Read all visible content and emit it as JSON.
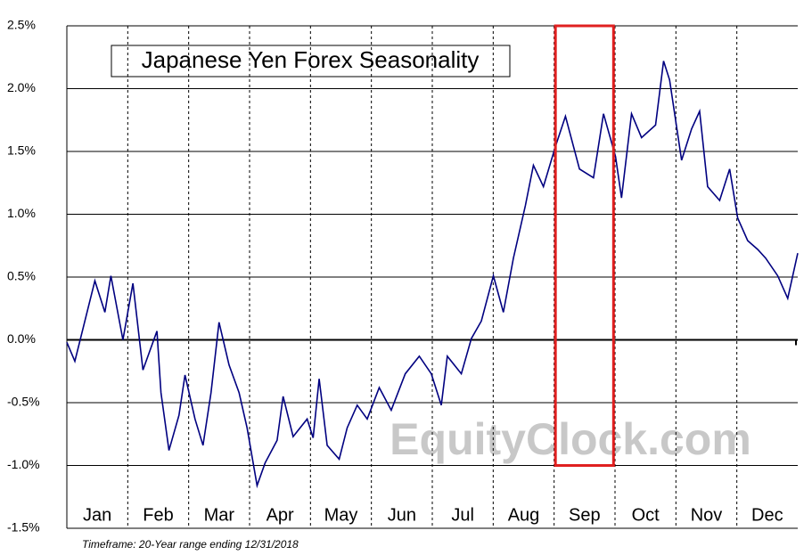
{
  "chart_data": {
    "type": "line",
    "title": "Japanese Yen Forex Seasonality",
    "footnote": "Timeframe: 20-Year range ending 12/31/2018",
    "watermark": "EquityClock.com",
    "months": [
      "Jan",
      "Feb",
      "Mar",
      "Apr",
      "May",
      "Jun",
      "Jul",
      "Aug",
      "Sep",
      "Oct",
      "Nov",
      "Dec"
    ],
    "xlim": [
      0,
      365
    ],
    "ylim": [
      -1.5,
      2.5
    ],
    "yticks": [
      {
        "value": 2.5,
        "label": "2.5%"
      },
      {
        "value": 2.0,
        "label": "2.0%"
      },
      {
        "value": 1.5,
        "label": "1.5%"
      },
      {
        "value": 1.0,
        "label": "1.0%"
      },
      {
        "value": 0.5,
        "label": "0.5%"
      },
      {
        "value": 0.0,
        "label": "0.0%"
      },
      {
        "value": -0.5,
        "label": "-0.5%"
      },
      {
        "value": -1.0,
        "label": "-1.0%"
      },
      {
        "value": -1.5,
        "label": "-1.5%"
      }
    ],
    "grid": true,
    "highlight": {
      "xlim": [
        244,
        273
      ],
      "ylim": [
        -1.0,
        2.5
      ],
      "color": "#e02020"
    },
    "series": [
      {
        "name": "Japanese Yen",
        "color": "#000080",
        "x": [
          0,
          4,
          9,
          14,
          19,
          22,
          28,
          33,
          38,
          45,
          47,
          51,
          56,
          59,
          64,
          68,
          72,
          76,
          81,
          86,
          90,
          95,
          99,
          105,
          108,
          113,
          120,
          123,
          126,
          130,
          136,
          140,
          145,
          150,
          156,
          162,
          169,
          176,
          182,
          187,
          190,
          197,
          202,
          207,
          213,
          218,
          223,
          229,
          233,
          238,
          244,
          249,
          256,
          263,
          268,
          274,
          277,
          282,
          287,
          294,
          298,
          301,
          307,
          312,
          316,
          320,
          326,
          331,
          335,
          340,
          345,
          349,
          355,
          360,
          365
        ],
        "values": [
          -0.02,
          -0.17,
          0.15,
          0.47,
          0.22,
          0.51,
          0.0,
          0.45,
          -0.24,
          0.07,
          -0.42,
          -0.88,
          -0.6,
          -0.28,
          -0.63,
          -0.84,
          -0.42,
          0.14,
          -0.2,
          -0.42,
          -0.7,
          -1.16,
          -0.98,
          -0.8,
          -0.45,
          -0.77,
          -0.63,
          -0.78,
          -0.31,
          -0.84,
          -0.95,
          -0.7,
          -0.52,
          -0.63,
          -0.38,
          -0.56,
          -0.27,
          -0.13,
          -0.27,
          -0.52,
          -0.13,
          -0.27,
          0.01,
          0.15,
          0.51,
          0.22,
          0.65,
          1.07,
          1.39,
          1.22,
          1.54,
          1.78,
          1.36,
          1.29,
          1.8,
          1.46,
          1.13,
          1.8,
          1.61,
          1.71,
          2.22,
          2.07,
          1.43,
          1.68,
          1.82,
          1.22,
          1.11,
          1.36,
          0.97,
          0.79,
          0.72,
          0.65,
          0.51,
          0.33,
          0.69
        ]
      }
    ]
  }
}
